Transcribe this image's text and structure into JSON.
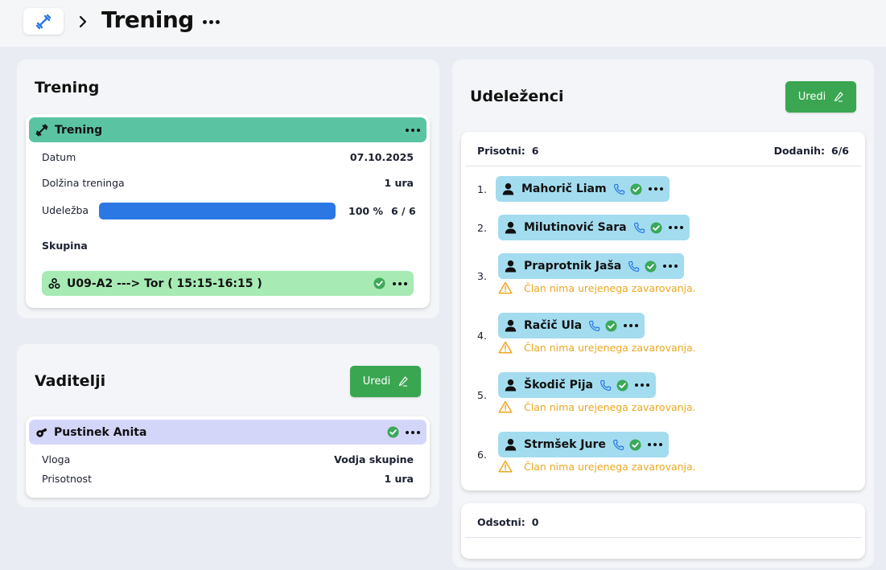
{
  "header": {
    "title": "Trening"
  },
  "training_panel": {
    "title": "Trening",
    "card": {
      "title": "Trening",
      "date_label": "Datum",
      "date_value": "07.10.2025",
      "duration_label": "Dolžina treninga",
      "duration_value": "1 ura",
      "attendance_label": "Udeležba",
      "attendance_fraction": 1.0,
      "attendance_percent": "100 %",
      "attendance_count": "6 / 6",
      "group_heading": "Skupina",
      "group_name": "U09-A2 ---> Tor ( 15:15-16:15 )"
    }
  },
  "coaches_panel": {
    "title": "Vaditelji",
    "edit_label": "Uredi",
    "coach": {
      "name": "Pustinek Anita",
      "role_label": "Vloga",
      "role_value": "Vodja skupine",
      "presence_label": "Prisotnost",
      "presence_value": "1 ura"
    }
  },
  "participants_panel": {
    "title": "Udeleženci",
    "edit_label": "Uredi",
    "present_label": "Prisotni:",
    "present_count": "6",
    "added_label": "Dodanih:",
    "added_count": "6/6",
    "participants": [
      {
        "num": "1.",
        "name": "Mahorič Liam",
        "warning": ""
      },
      {
        "num": "2.",
        "name": "Milutinović Sara",
        "warning": ""
      },
      {
        "num": "3.",
        "name": "Praprotnik Jaša",
        "warning": "Član nima urejenega zavarovanja."
      },
      {
        "num": "4.",
        "name": "Račič Ula",
        "warning": "Član nima urejenega zavarovanja."
      },
      {
        "num": "5.",
        "name": "Škodič Pija",
        "warning": "Član nima urejenega zavarovanja."
      },
      {
        "num": "6.",
        "name": "Strmšek Jure",
        "warning": "Član nima urejenega zavarovanja."
      }
    ],
    "absent_label": "Odsotni:",
    "absent_count": "0"
  },
  "colors": {
    "training_header": "#5ac4a2",
    "group_pill": "#a7eab4",
    "coach_header": "#d4d6f9",
    "participant_pill": "#a3dcef",
    "edit_button": "#3aa651",
    "progress": "#2b78e4",
    "warning": "#eba820",
    "check": "#3ba85a",
    "phone": "#2b78e4"
  }
}
